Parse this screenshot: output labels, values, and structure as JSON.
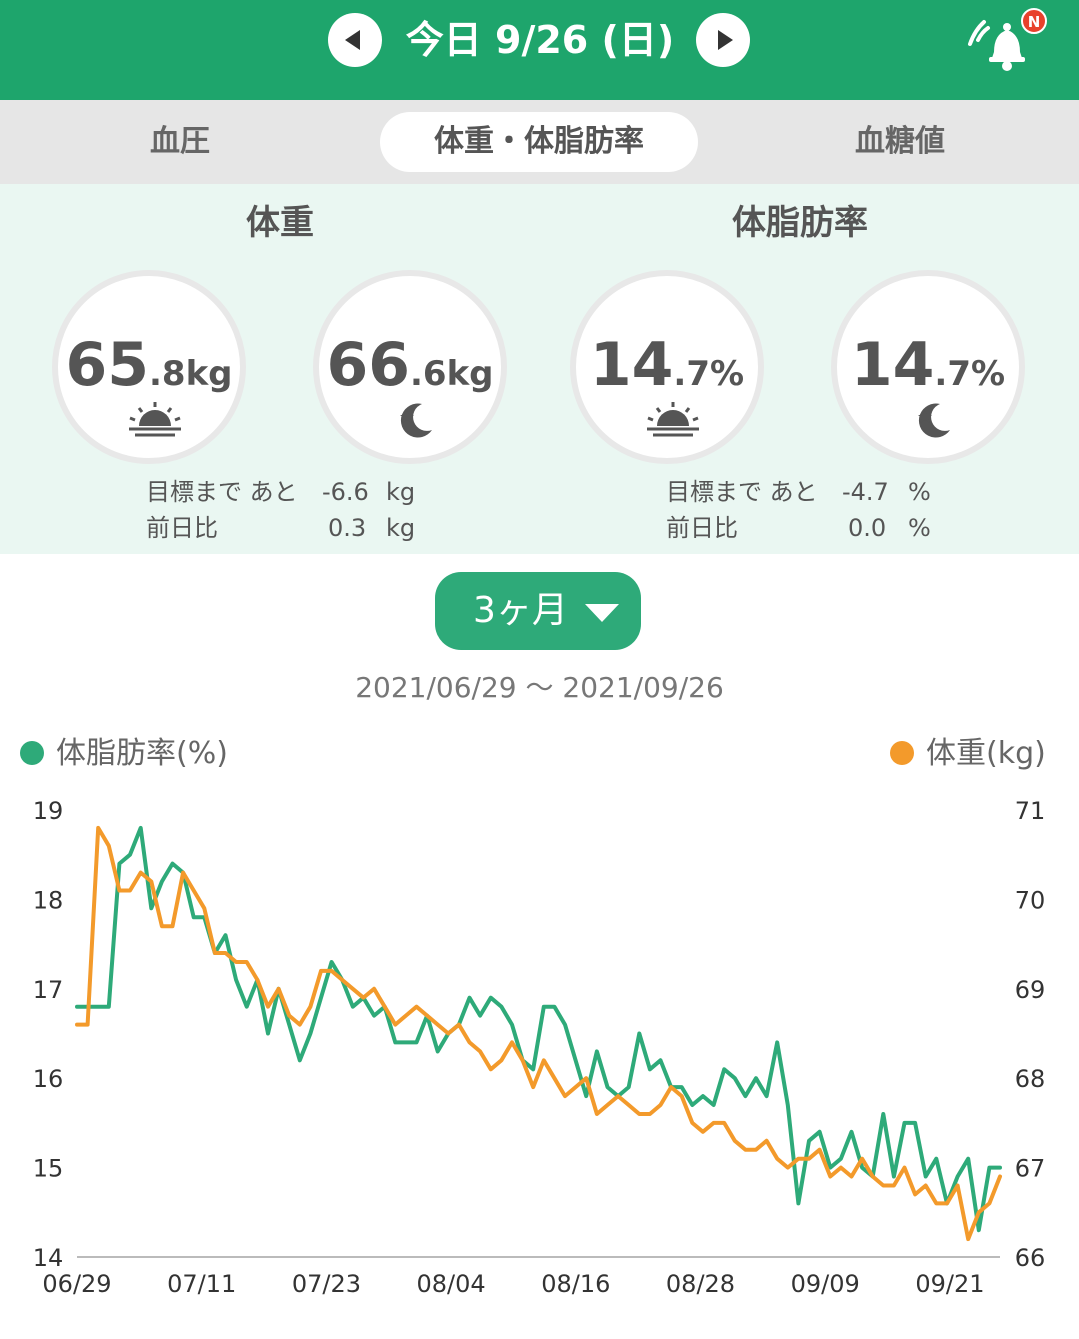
{
  "header": {
    "date_title": "今日 9/26 (日)",
    "badge": "N",
    "accent_color": "#1ea56c",
    "icons": [
      "chevron-left-icon",
      "chevron-right-icon",
      "bell-icon"
    ]
  },
  "tabs": [
    {
      "label": "血圧",
      "active": false
    },
    {
      "label": "体重・体脂肪率",
      "active": true
    },
    {
      "label": "血糖値",
      "active": false
    }
  ],
  "weight": {
    "title": "体重",
    "morning": {
      "int": "65",
      "dec": ".8",
      "unit": "kg"
    },
    "evening": {
      "int": "66",
      "dec": ".6",
      "unit": "kg"
    },
    "goal_label": "目標まで あと",
    "goal_value": "-6.6",
    "goal_unit": "kg",
    "diff_label": "前日比",
    "diff_value": "0.3",
    "diff_unit": "kg"
  },
  "fat": {
    "title": "体脂肪率",
    "morning": {
      "int": "14",
      "dec": ".7",
      "unit": "%"
    },
    "evening": {
      "int": "14",
      "dec": ".7",
      "unit": "%"
    },
    "goal_label": "目標まで あと",
    "goal_value": "-4.7",
    "goal_unit": "%",
    "diff_label": "前日比",
    "diff_value": "0.0",
    "diff_unit": "%"
  },
  "period": {
    "label": "3ヶ月"
  },
  "range_text": "2021/06/29 〜 2021/09/26",
  "legend": {
    "fat_label": "体脂肪率(%)",
    "weight_label": "体重(kg)"
  },
  "chart_data": {
    "type": "line",
    "x_ticks": [
      "06/29",
      "07/11",
      "07/23",
      "08/04",
      "08/16",
      "08/28",
      "09/09",
      "09/21"
    ],
    "y_left": {
      "ticks": [
        "19",
        "18",
        "17",
        "16",
        "15",
        "14"
      ],
      "range": [
        14,
        19
      ]
    },
    "y_right": {
      "ticks": [
        "71",
        "70",
        "69",
        "68",
        "67",
        "66"
      ],
      "range": [
        66,
        71
      ]
    },
    "series": [
      {
        "name": "体脂肪率(%)",
        "axis": "left",
        "color": "#2eaa79",
        "values": [
          16.8,
          16.8,
          16.8,
          16.8,
          18.4,
          18.5,
          18.8,
          17.9,
          18.2,
          18.4,
          18.3,
          17.8,
          17.8,
          17.4,
          17.6,
          17.1,
          16.8,
          17.1,
          16.5,
          17.0,
          16.6,
          16.2,
          16.5,
          16.9,
          17.3,
          17.1,
          16.8,
          16.9,
          16.7,
          16.8,
          16.4,
          16.4,
          16.4,
          16.7,
          16.3,
          16.5,
          16.6,
          16.9,
          16.7,
          16.9,
          16.8,
          16.6,
          16.2,
          16.1,
          16.8,
          16.8,
          16.6,
          16.2,
          15.8,
          16.3,
          15.9,
          15.8,
          15.9,
          16.5,
          16.1,
          16.2,
          15.9,
          15.9,
          15.7,
          15.8,
          15.7,
          16.1,
          16.0,
          15.8,
          16.0,
          15.8,
          16.4,
          15.7,
          14.6,
          15.3,
          15.4,
          15.0,
          15.1,
          15.4,
          15.0,
          14.9,
          15.6,
          14.9,
          15.5,
          15.5,
          14.9,
          15.1,
          14.6,
          14.9,
          15.1,
          14.3,
          15.0,
          15.0
        ]
      },
      {
        "name": "体重(kg)",
        "axis": "right",
        "color": "#f39a2b",
        "values": [
          68.6,
          68.6,
          70.8,
          70.6,
          70.1,
          70.1,
          70.3,
          70.2,
          69.7,
          69.7,
          70.3,
          70.1,
          69.9,
          69.4,
          69.4,
          69.3,
          69.3,
          69.1,
          68.8,
          69.0,
          68.7,
          68.6,
          68.8,
          69.2,
          69.2,
          69.1,
          69.0,
          68.9,
          69.0,
          68.8,
          68.6,
          68.7,
          68.8,
          68.7,
          68.6,
          68.5,
          68.6,
          68.4,
          68.3,
          68.1,
          68.2,
          68.4,
          68.2,
          67.9,
          68.2,
          68.0,
          67.8,
          67.9,
          68.0,
          67.6,
          67.7,
          67.8,
          67.7,
          67.6,
          67.6,
          67.7,
          67.9,
          67.8,
          67.5,
          67.4,
          67.5,
          67.5,
          67.3,
          67.2,
          67.2,
          67.3,
          67.1,
          67.0,
          67.1,
          67.1,
          67.2,
          66.9,
          67.0,
          66.9,
          67.1,
          66.9,
          66.8,
          66.8,
          67.0,
          66.7,
          66.8,
          66.6,
          66.6,
          66.8,
          66.2,
          66.5,
          66.6,
          66.9
        ]
      }
    ]
  }
}
